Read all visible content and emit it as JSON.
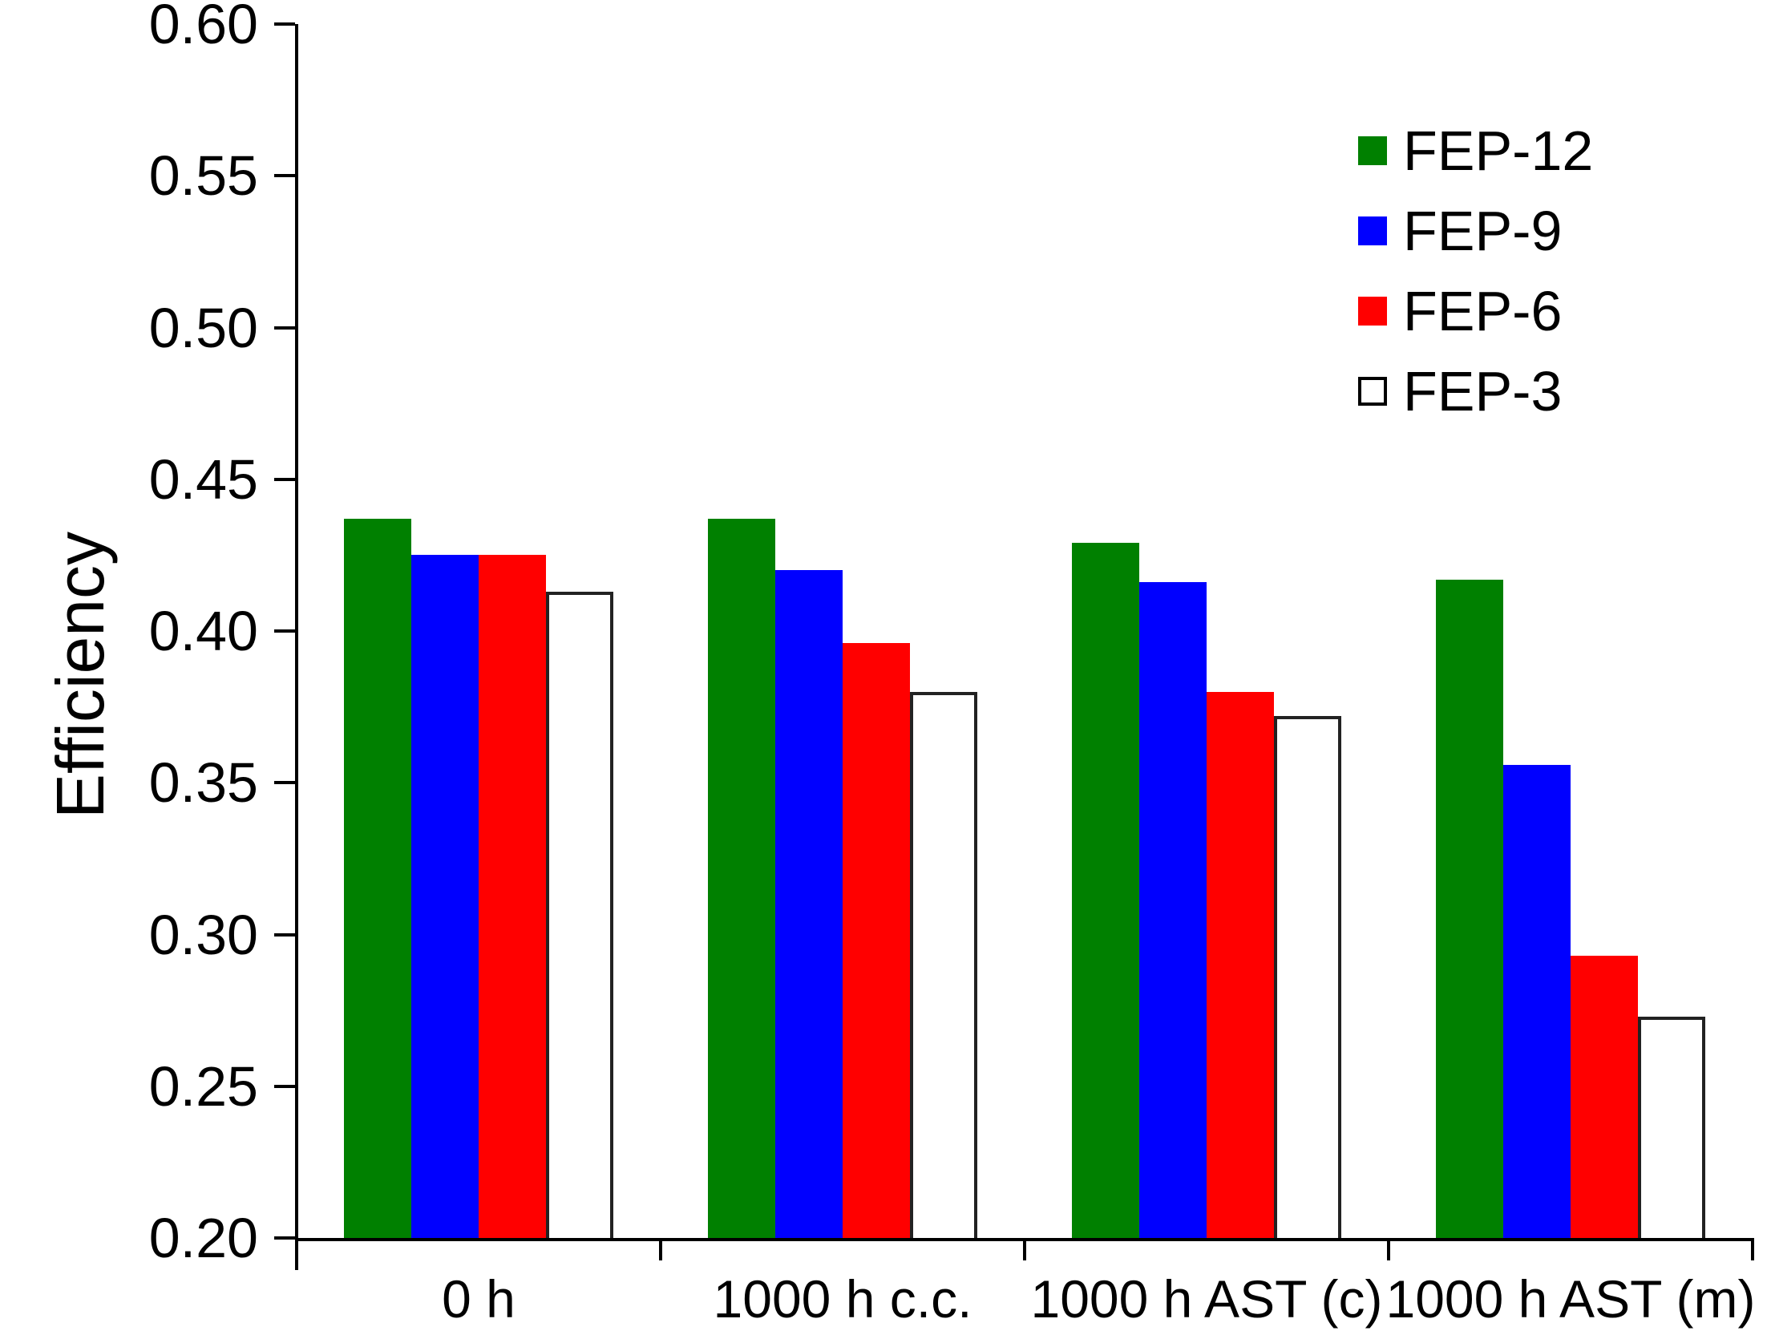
{
  "figure": {
    "background": "#ffffff",
    "axis_color": "#000000",
    "text_color": "#000000"
  },
  "chart_data": {
    "type": "bar",
    "title": "",
    "xlabel": "",
    "ylabel": "Efficiency",
    "categories": [
      "0 h",
      "1000 h c.c.",
      "1000 h AST (c)",
      "1000 h AST (m)"
    ],
    "series": [
      {
        "name": "FEP-12",
        "color": "#008000",
        "values": [
          0.437,
          0.437,
          0.429,
          0.417
        ]
      },
      {
        "name": "FEP-9",
        "color": "#0000ff",
        "values": [
          0.425,
          0.42,
          0.416,
          0.356
        ]
      },
      {
        "name": "FEP-6",
        "color": "#ff0000",
        "values": [
          0.425,
          0.396,
          0.38,
          0.293
        ]
      },
      {
        "name": "FEP-3",
        "color": "#ffffff",
        "values": [
          0.413,
          0.38,
          0.372,
          0.273
        ],
        "outlined": true,
        "outline_color": "#222222"
      }
    ],
    "ylim": [
      0.2,
      0.6
    ],
    "ytick_step": 0.05,
    "ytick_labels": [
      "0.20",
      "0.25",
      "0.30",
      "0.35",
      "0.40",
      "0.45",
      "0.50",
      "0.55",
      "0.60"
    ],
    "grid": false,
    "legend_position": "upper-right"
  }
}
